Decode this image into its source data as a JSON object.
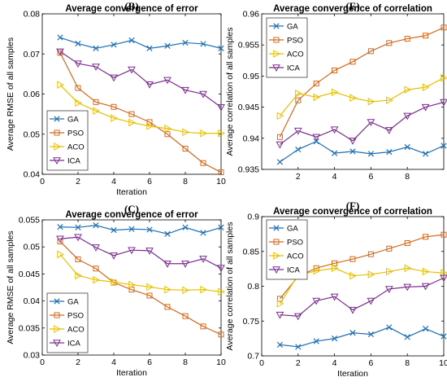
{
  "colors": {
    "GA": "#1f6fb4",
    "PSO": "#d2691e",
    "ACO": "#e6c000",
    "ICA": "#7b2d8e"
  },
  "markers": {
    "GA": "x",
    "PSO": "square",
    "ACO": "triangle-right",
    "ICA": "triangle-down"
  },
  "chart_data": [
    {
      "panel": "(B)",
      "type": "line",
      "title": "Average convergence of error",
      "xlabel": "Iteration",
      "ylabel": "Average RMSE of all samples",
      "xlim": [
        0,
        10
      ],
      "ylim": [
        0.04,
        0.08
      ],
      "xticks": [
        0,
        2,
        4,
        6,
        8,
        10
      ],
      "yticks": [
        0.04,
        0.05,
        0.06,
        0.07,
        0.08
      ],
      "ytick_labels": [
        "0.04",
        "0.05",
        "0.06",
        "0.07",
        "0.08"
      ],
      "legend_position": "bottom-left",
      "x": [
        1,
        2,
        3,
        4,
        5,
        6,
        7,
        8,
        9,
        10
      ],
      "series": [
        {
          "name": "GA",
          "values": [
            0.0741,
            0.0726,
            0.0714,
            0.0723,
            0.0734,
            0.0714,
            0.072,
            0.0728,
            0.0725,
            0.0714
          ]
        },
        {
          "name": "PSO",
          "values": [
            0.0703,
            0.0615,
            0.058,
            0.0568,
            0.055,
            0.053,
            0.05,
            0.0464,
            0.0428,
            0.0405
          ]
        },
        {
          "name": "ACO",
          "values": [
            0.0623,
            0.0578,
            0.0558,
            0.054,
            0.0529,
            0.052,
            0.0514,
            0.0505,
            0.0502,
            0.0502
          ]
        },
        {
          "name": "ICA",
          "values": [
            0.0706,
            0.0676,
            0.0668,
            0.0641,
            0.0661,
            0.0624,
            0.0635,
            0.061,
            0.06,
            0.0567
          ]
        }
      ]
    },
    {
      "panel": "(E)",
      "type": "line",
      "title": "Average convergence of correlation",
      "xlabel": "",
      "ylabel": "Average correlation of all samples",
      "xlim": [
        0,
        10
      ],
      "ylim": [
        0.935,
        0.96
      ],
      "xticks": [
        2,
        4,
        6,
        8
      ],
      "yticks": [
        0.935,
        0.94,
        0.945,
        0.95,
        0.955,
        0.96
      ],
      "ytick_labels": [
        "0.935",
        "0.94",
        "0.945",
        "0.95",
        "0.955",
        "0.96"
      ],
      "legend_position": "top-left",
      "x": [
        1,
        2,
        3,
        4,
        5,
        6,
        7,
        8,
        9,
        10
      ],
      "series": [
        {
          "name": "GA",
          "values": [
            0.9362,
            0.9382,
            0.9395,
            0.9376,
            0.9379,
            0.9375,
            0.9378,
            0.9386,
            0.9375,
            0.9388
          ]
        },
        {
          "name": "PSO",
          "values": [
            0.9402,
            0.9461,
            0.9488,
            0.9509,
            0.9523,
            0.954,
            0.9553,
            0.956,
            0.9565,
            0.9578
          ]
        },
        {
          "name": "ACO",
          "values": [
            0.9436,
            0.9472,
            0.9466,
            0.9474,
            0.9465,
            0.9459,
            0.9461,
            0.9478,
            0.9482,
            0.9497
          ]
        },
        {
          "name": "ICA",
          "values": [
            0.939,
            0.9412,
            0.9402,
            0.9414,
            0.9396,
            0.9426,
            0.9413,
            0.9436,
            0.945,
            0.9458
          ]
        }
      ]
    },
    {
      "panel": "(C)",
      "type": "line",
      "title": "Average convergence of error",
      "xlabel": "Iteration",
      "ylabel": "Average RMSE of all samples",
      "xlim": [
        0,
        10
      ],
      "ylim": [
        0.03,
        0.055
      ],
      "xticks": [
        0,
        2,
        4,
        6,
        8,
        10
      ],
      "yticks": [
        0.03,
        0.035,
        0.04,
        0.045,
        0.05,
        0.055
      ],
      "ytick_labels": [
        "0.03",
        "0.035",
        "0.04",
        "0.045",
        "0.05",
        "0.055"
      ],
      "legend_position": "bottom-left",
      "x": [
        1,
        2,
        3,
        4,
        5,
        6,
        7,
        8,
        9,
        10
      ],
      "series": [
        {
          "name": "GA",
          "values": [
            0.0537,
            0.0536,
            0.054,
            0.0531,
            0.0533,
            0.0532,
            0.0524,
            0.0536,
            0.0526,
            0.0536
          ]
        },
        {
          "name": "PSO",
          "values": [
            0.051,
            0.0477,
            0.046,
            0.0434,
            0.0421,
            0.041,
            0.0389,
            0.0372,
            0.0353,
            0.0338
          ]
        },
        {
          "name": "ACO",
          "values": [
            0.0486,
            0.0447,
            0.0439,
            0.0435,
            0.043,
            0.0426,
            0.0421,
            0.042,
            0.0421,
            0.0417
          ]
        },
        {
          "name": "ICA",
          "values": [
            0.0515,
            0.0518,
            0.0499,
            0.0484,
            0.0494,
            0.0493,
            0.0469,
            0.0469,
            0.0478,
            0.0461
          ]
        }
      ]
    },
    {
      "panel": "(F)",
      "type": "line",
      "title": "Average convergence of correlation",
      "xlabel": "Iteration",
      "ylabel": "Average correlation of all samples",
      "xlim": [
        0,
        10
      ],
      "ylim": [
        0.7,
        0.9
      ],
      "xticks": [
        0,
        2,
        4,
        6,
        8,
        10
      ],
      "yticks": [
        0.7,
        0.75,
        0.8,
        0.85,
        0.9
      ],
      "ytick_labels": [
        "0.7",
        "0.75",
        "0.8",
        "0.85",
        "0.9"
      ],
      "legend_position": "top-left",
      "x": [
        1,
        2,
        3,
        4,
        5,
        6,
        7,
        8,
        9,
        10
      ],
      "series": [
        {
          "name": "GA",
          "values": [
            0.716,
            0.713,
            0.721,
            0.725,
            0.733,
            0.731,
            0.741,
            0.727,
            0.739,
            0.728
          ]
        },
        {
          "name": "PSO",
          "values": [
            0.782,
            0.814,
            0.826,
            0.833,
            0.839,
            0.846,
            0.854,
            0.862,
            0.871,
            0.874
          ]
        },
        {
          "name": "ACO",
          "values": [
            0.775,
            0.816,
            0.822,
            0.826,
            0.815,
            0.817,
            0.821,
            0.826,
            0.821,
            0.819
          ]
        },
        {
          "name": "ICA",
          "values": [
            0.759,
            0.757,
            0.779,
            0.785,
            0.766,
            0.779,
            0.796,
            0.799,
            0.8,
            0.812
          ]
        }
      ]
    }
  ]
}
